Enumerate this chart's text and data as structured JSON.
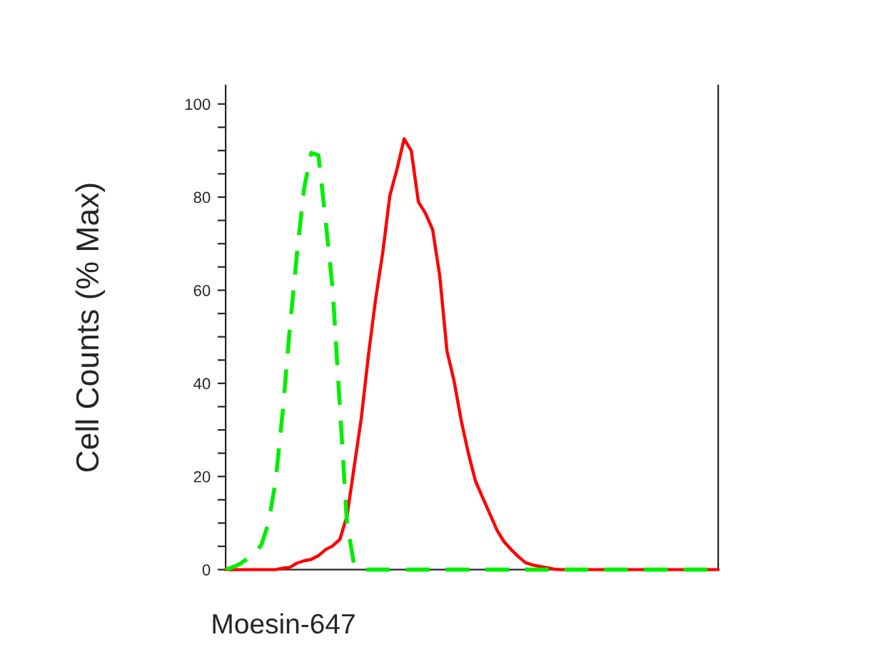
{
  "chart_data": {
    "type": "line",
    "xlabel": "Moesin-647",
    "ylabel": "Cell Counts (% Max)",
    "categories": [
      null,
      null,
      null,
      null,
      null,
      null,
      null,
      null,
      null,
      null,
      null,
      null,
      null,
      null,
      null,
      null,
      null,
      null,
      null,
      null,
      null,
      null,
      null,
      null,
      null,
      null,
      null,
      null,
      null,
      null,
      null,
      null,
      null,
      null,
      null,
      null,
      null,
      null,
      null,
      null,
      null,
      null,
      null,
      null,
      null,
      null,
      null,
      null,
      null,
      null,
      null,
      null,
      null,
      null,
      null,
      null,
      null,
      null,
      null,
      null,
      null,
      null,
      null,
      null,
      null,
      null,
      null,
      null,
      null,
      null
    ],
    "series": [
      {
        "color": "#00ee00",
        "line_style": "dashed",
        "values": [
          0,
          0.5,
          1.2,
          2.3,
          3.4,
          5.3,
          10,
          19,
          34,
          52,
          68,
          82,
          89.5,
          89,
          75,
          60,
          35,
          10,
          1,
          0,
          0,
          0,
          0,
          0,
          0,
          0,
          0,
          0,
          0,
          0,
          0,
          0,
          0,
          0,
          0,
          0,
          0,
          0,
          0,
          0,
          0,
          0,
          0,
          0,
          0,
          0,
          0,
          0,
          0,
          0,
          0,
          0,
          0,
          0,
          0,
          0,
          0,
          0,
          0,
          0,
          0,
          0,
          0,
          0,
          0,
          0,
          0,
          0,
          0,
          0
        ]
      },
      {
        "color": "#ff0000",
        "line_style": "solid",
        "values": [
          0,
          0,
          0,
          0,
          0,
          0,
          0,
          0,
          0.3,
          0.5,
          1.4,
          1.9,
          2.2,
          3,
          4.3,
          5.1,
          6.5,
          11.5,
          22,
          32.5,
          46,
          58,
          68,
          80.3,
          86,
          92.5,
          90,
          79,
          76.5,
          73,
          63,
          47,
          40.5,
          32,
          25,
          19,
          15.5,
          12,
          8.5,
          6,
          4.3,
          2.8,
          1.5,
          1,
          0.7,
          0.4,
          0.1,
          0,
          0,
          0,
          0,
          0,
          0,
          0,
          0,
          0,
          0,
          0,
          0,
          0,
          0,
          0,
          0,
          0,
          0,
          0,
          0,
          0,
          0,
          0
        ]
      }
    ],
    "ylim": [
      0,
      104
    ],
    "yticks": [
      0,
      {
        "value": 5,
        "label": null
      },
      {
        "value": 10,
        "label": null
      },
      {
        "value": 15,
        "label": null
      },
      20,
      {
        "value": 25,
        "label": null
      },
      {
        "value": 30,
        "label": null
      },
      {
        "value": 35,
        "label": null
      },
      40,
      {
        "value": 45,
        "label": null
      },
      {
        "value": 50,
        "label": null
      },
      {
        "value": 55,
        "label": null
      },
      60,
      {
        "value": 65,
        "label": null
      },
      {
        "value": 70,
        "label": null
      },
      {
        "value": 75,
        "label": null
      },
      80,
      {
        "value": 85,
        "label": null
      },
      {
        "value": 90,
        "label": null
      },
      {
        "value": 95,
        "label": null
      },
      100
    ],
    "tick_labels": "y",
    "grid": false,
    "legend": false
  }
}
